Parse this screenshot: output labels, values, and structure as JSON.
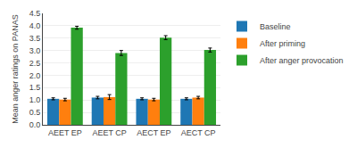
{
  "chart_data": {
    "type": "bar",
    "categories": [
      "AEET EP",
      "AEET CP",
      "AECT EP",
      "AECT CP"
    ],
    "series": [
      {
        "name": "Baseline",
        "values": [
          1.05,
          1.1,
          1.05,
          1.05
        ],
        "errors": [
          0.04,
          0.05,
          0.04,
          0.04
        ]
      },
      {
        "name": "After priming",
        "values": [
          1.02,
          1.12,
          1.02,
          1.1
        ],
        "errors": [
          0.05,
          0.1,
          0.05,
          0.05
        ]
      },
      {
        "name": "After anger provocation",
        "values": [
          3.92,
          2.9,
          3.52,
          3.02
        ],
        "errors": [
          0.06,
          0.1,
          0.08,
          0.08
        ]
      }
    ],
    "ylabel": "Mean anger ratings on PANAS",
    "ylim": [
      0,
      4.5
    ],
    "yticks": [
      {
        "value": 0,
        "label": "0.0"
      },
      0.5,
      {
        "value": 1,
        "label": "1.0"
      },
      1.5,
      {
        "value": 2,
        "label": "2.0"
      },
      2.5,
      {
        "value": 3,
        "label": "3.0"
      },
      3.5,
      {
        "value": 4,
        "label": "4.0"
      },
      4.5
    ],
    "grid": true,
    "legend": "right"
  }
}
